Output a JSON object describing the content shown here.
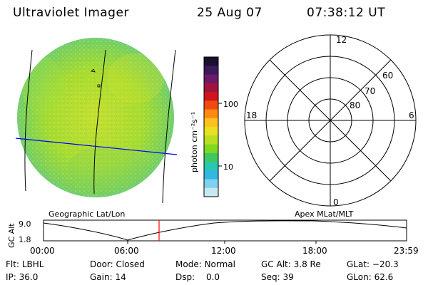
{
  "header": {
    "instrument": "Ultraviolet Imager",
    "date": "25 Aug 07",
    "time": "07:38:12 UT"
  },
  "colorbar": {
    "unit_label": "photon cm⁻²s⁻¹",
    "ticks": [
      "100",
      "10"
    ],
    "colors_top_to_bottom": [
      "#1a0f2e",
      "#3a1a5a",
      "#6a1a6a",
      "#a0143c",
      "#d0141e",
      "#f04a10",
      "#ff8a10",
      "#ffc020",
      "#e8e020",
      "#b8e020",
      "#80d820",
      "#40c860",
      "#28c8b0",
      "#30b8e0",
      "#80d0f0",
      "#c8e8f0"
    ]
  },
  "geo_panel": {
    "label": "Geographic Lat/Lon"
  },
  "apex_panel": {
    "label": "Apex MLat/MLT",
    "mlt_labels": {
      "top": "12",
      "right": "6",
      "bottom": "0",
      "left": "18"
    },
    "mlat_labels": [
      "60",
      "70",
      "80"
    ]
  },
  "altitude_plot": {
    "y_label": "GC Alt",
    "y_ticks": [
      "9.0",
      "1.8"
    ],
    "x_ticks": [
      "00:00",
      "06:00",
      "12:00",
      "18:00",
      "23:59"
    ],
    "current_marker_time": "07:38"
  },
  "status": {
    "row1": [
      {
        "key": "Flt:",
        "val": "LBHL"
      },
      {
        "key": "Door:",
        "val": "Closed"
      },
      {
        "key": "Mode:",
        "val": "Normal"
      },
      {
        "key": "GC Alt:",
        "val": "3.8 Re"
      },
      {
        "key": "GLat:",
        "val": "−20.3"
      }
    ],
    "row2": [
      {
        "key": "IP:",
        "val": "36.0"
      },
      {
        "key": "Gain:",
        "val": "14"
      },
      {
        "key": "Dsp:",
        "val": "0.0"
      },
      {
        "key": "Seq:",
        "val": "39"
      },
      {
        "key": "GLon:",
        "val": "62.6"
      }
    ]
  },
  "colors": {
    "geo_grid": "#0000ff",
    "marker": "#ff0000"
  }
}
